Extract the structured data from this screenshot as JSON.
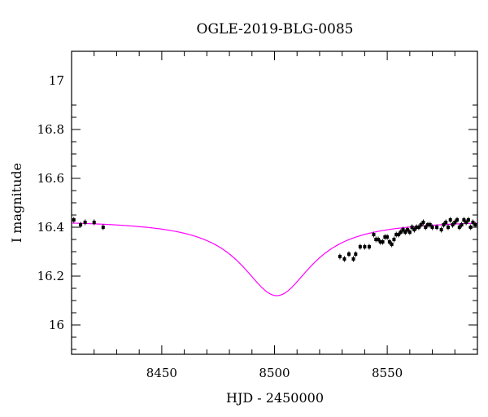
{
  "chart_data": {
    "type": "scatter",
    "title": "OGLE-2019-BLG-0085",
    "xlabel": "HJD - 2450000",
    "ylabel": "I magnitude",
    "xlim": [
      8410,
      8590
    ],
    "ylim": [
      17.12,
      15.88
    ],
    "y_inverted": true,
    "x_ticks": [
      8450,
      8500,
      8550
    ],
    "x_tick_labels": [
      "8450",
      "8500",
      "8550"
    ],
    "y_ticks": [
      16,
      16.2,
      16.4,
      16.6,
      16.8,
      17
    ],
    "y_tick_labels": [
      "16",
      "16.2",
      "16.4",
      "16.6",
      "16.8",
      "17"
    ],
    "grid": false,
    "colors": {
      "data": "#000000",
      "model": "#ff00ff"
    },
    "series": [
      {
        "type": "scatter",
        "x": [
          8411,
          8414,
          8416,
          8420,
          8424,
          8529,
          8531,
          8533,
          8535,
          8536,
          8538,
          8540,
          8542,
          8544,
          8545,
          8546,
          8547,
          8548,
          8549,
          8550,
          8551,
          8552,
          8553,
          8554,
          8555,
          8556,
          8557,
          8558,
          8559,
          8560,
          8561,
          8562,
          8563,
          8564,
          8565,
          8566,
          8567,
          8568,
          8569,
          8570,
          8572,
          8574,
          8575,
          8576,
          8577,
          8578,
          8579,
          8580,
          8581,
          8582,
          8583,
          8584,
          8585,
          8586,
          8587,
          8588,
          8589
        ],
        "y": [
          16.43,
          16.41,
          16.42,
          16.42,
          16.4,
          16.28,
          16.27,
          16.29,
          16.27,
          16.29,
          16.32,
          16.32,
          16.32,
          16.37,
          16.35,
          16.35,
          16.34,
          16.34,
          16.36,
          16.36,
          16.34,
          16.33,
          16.35,
          16.37,
          16.37,
          16.38,
          16.39,
          16.38,
          16.39,
          16.38,
          16.4,
          16.39,
          16.4,
          16.4,
          16.41,
          16.42,
          16.4,
          16.41,
          16.41,
          16.4,
          16.4,
          16.39,
          16.41,
          16.42,
          16.4,
          16.43,
          16.41,
          16.42,
          16.43,
          16.4,
          16.41,
          16.43,
          16.42,
          16.43,
          16.4,
          16.42,
          16.41
        ]
      },
      {
        "type": "line",
        "model": {
          "baseline": 16.43,
          "peak_time": 8501,
          "peak_amplitude": 0.31,
          "timescale": 19
        }
      }
    ]
  }
}
